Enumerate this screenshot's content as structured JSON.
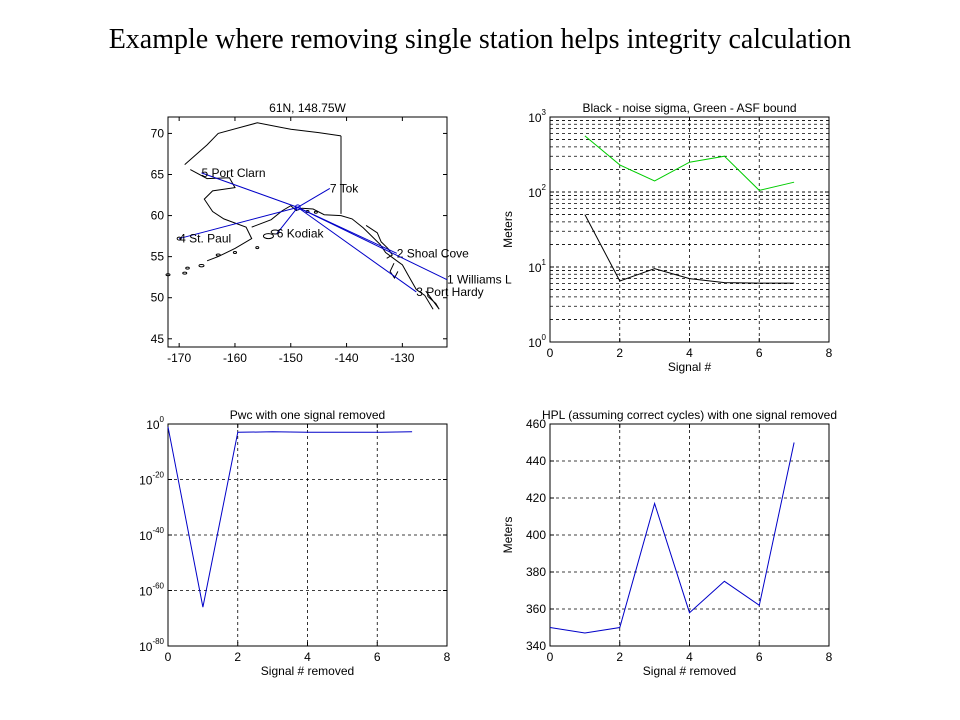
{
  "slide": {
    "title": "Example where removing single station helps integrity calculation"
  },
  "chart_data": [
    {
      "type": "line",
      "title": "61N, 148.75W",
      "xlabel": "",
      "ylabel": "",
      "xlim": [
        -172,
        -122
      ],
      "ylim": [
        44,
        72
      ],
      "xticks": [
        -170,
        -160,
        -150,
        -140,
        -130
      ],
      "yticks": [
        45,
        50,
        55,
        60,
        65,
        70
      ],
      "grid": false,
      "colors": {
        "coast": "#000000",
        "rays": "#0000c8"
      },
      "user_position": [
        -148.75,
        61
      ],
      "stations": [
        {
          "label": "5 Port Clarn",
          "lon": -166,
          "lat": 65.2
        },
        {
          "label": "7 Tok",
          "lon": -143,
          "lat": 63.3
        },
        {
          "label": "4 St. Paul",
          "lon": -170,
          "lat": 57.2
        },
        {
          "label": "6 Kodiak",
          "lon": -152.5,
          "lat": 57.8
        },
        {
          "label": "2 Shoal Cove",
          "lon": -131,
          "lat": 55.4
        },
        {
          "label": "1 Williams L",
          "lon": -122,
          "lat": 52.2
        },
        {
          "label": "3 Port Hardy",
          "lon": -127.5,
          "lat": 50.7
        }
      ]
    },
    {
      "type": "line",
      "title": "Black - noise sigma, Green - ASF bound",
      "xlabel": "Signal #",
      "ylabel": "Meters",
      "xlim": [
        0,
        8
      ],
      "ylim": [
        1,
        1000
      ],
      "yscale": "log",
      "xticks": [
        0,
        2,
        4,
        6,
        8
      ],
      "yticks": [
        {
          "base": "10",
          "exp": "0",
          "v": 1
        },
        {
          "base": "10",
          "exp": "1",
          "v": 10
        },
        {
          "base": "10",
          "exp": "2",
          "v": 100
        },
        {
          "base": "10",
          "exp": "3",
          "v": 1000
        }
      ],
      "grid": true,
      "series": [
        {
          "name": "ASF bound",
          "color": "#00cc00",
          "x": [
            1,
            2,
            3,
            4,
            5,
            6,
            7
          ],
          "y": [
            560,
            230,
            140,
            250,
            300,
            105,
            135
          ]
        },
        {
          "name": "noise sigma",
          "color": "#000000",
          "x": [
            1,
            2,
            3,
            4,
            5,
            6,
            7
          ],
          "y": [
            50,
            6.5,
            9.5,
            7,
            6.2,
            6.1,
            6.1
          ]
        }
      ]
    },
    {
      "type": "line",
      "title": "Pwc with one signal removed",
      "xlabel": "Signal # removed",
      "ylabel": "",
      "xlim": [
        0,
        8
      ],
      "ylim": [
        -80,
        0
      ],
      "yscale": "log",
      "xticks": [
        0,
        2,
        4,
        6,
        8
      ],
      "yticks": [
        {
          "base": "10",
          "exp": "0",
          "v": 0
        },
        {
          "base": "10",
          "exp": "-20",
          "v": -20
        },
        {
          "base": "10",
          "exp": "-40",
          "v": -40
        },
        {
          "base": "10",
          "exp": "-60",
          "v": -60
        },
        {
          "base": "10",
          "exp": "-80",
          "v": -80
        }
      ],
      "grid": true,
      "series": [
        {
          "color": "#0000c8",
          "x": [
            0,
            1,
            2,
            3,
            4,
            5,
            6,
            7
          ],
          "y": [
            -1,
            -66,
            -3,
            -2.8,
            -3,
            -3,
            -3,
            -2.8
          ]
        }
      ]
    },
    {
      "type": "line",
      "title": "HPL (assuming correct cycles) with one signal removed",
      "xlabel": "Signal # removed",
      "ylabel": "Meters",
      "xlim": [
        0,
        8
      ],
      "ylim": [
        340,
        460
      ],
      "xticks": [
        0,
        2,
        4,
        6,
        8
      ],
      "yticks": [
        340,
        360,
        380,
        400,
        420,
        440,
        460
      ],
      "grid": true,
      "series": [
        {
          "color": "#0000c8",
          "x": [
            0,
            1,
            2,
            3,
            4,
            5,
            6,
            7
          ],
          "y": [
            350,
            347,
            350,
            417,
            358,
            375,
            362,
            450
          ]
        }
      ]
    }
  ]
}
